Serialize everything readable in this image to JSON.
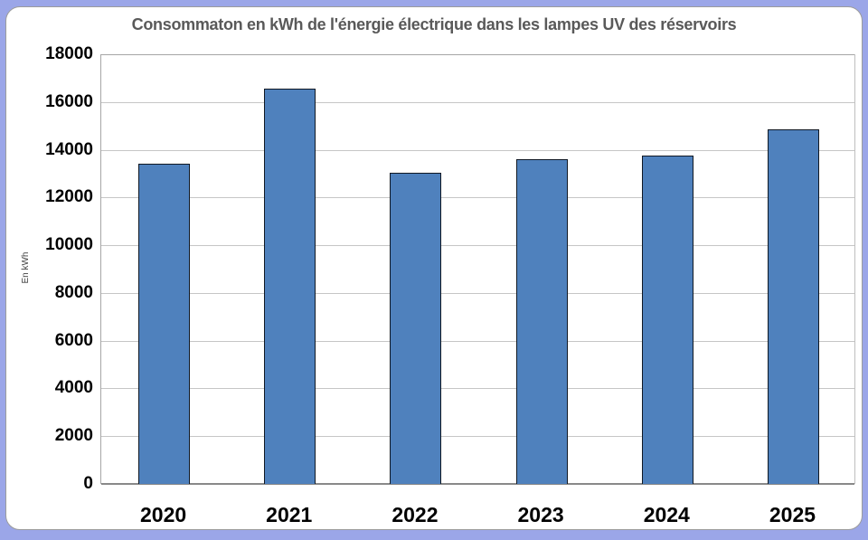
{
  "chart_data": {
    "type": "bar",
    "title": "Consommaton en kWh de l'énergie électrique dans les lampes UV des réservoirs",
    "xlabel": "",
    "ylabel": "En kWh",
    "categories": [
      "2020",
      "2021",
      "2022",
      "2023",
      "2024",
      "2025"
    ],
    "values": [
      13400,
      16550,
      13050,
      13600,
      13750,
      14850
    ],
    "ylim": [
      0,
      18000
    ],
    "yticks": [
      0,
      2000,
      4000,
      6000,
      8000,
      10000,
      12000,
      14000,
      16000,
      18000
    ],
    "grid": true,
    "legend_position": "none",
    "colors": {
      "bar_fill": "#4f81bd",
      "bar_border": "#101823",
      "gridline": "#c6c6c6",
      "axis_line": "#898989",
      "title_color": "#595959",
      "tick_label_color": "#000000",
      "y_axis_title_color": "#404040",
      "frame_background": "#9ba6e8",
      "card_background": "#ffffff",
      "card_border": "#9c9c9c"
    }
  }
}
